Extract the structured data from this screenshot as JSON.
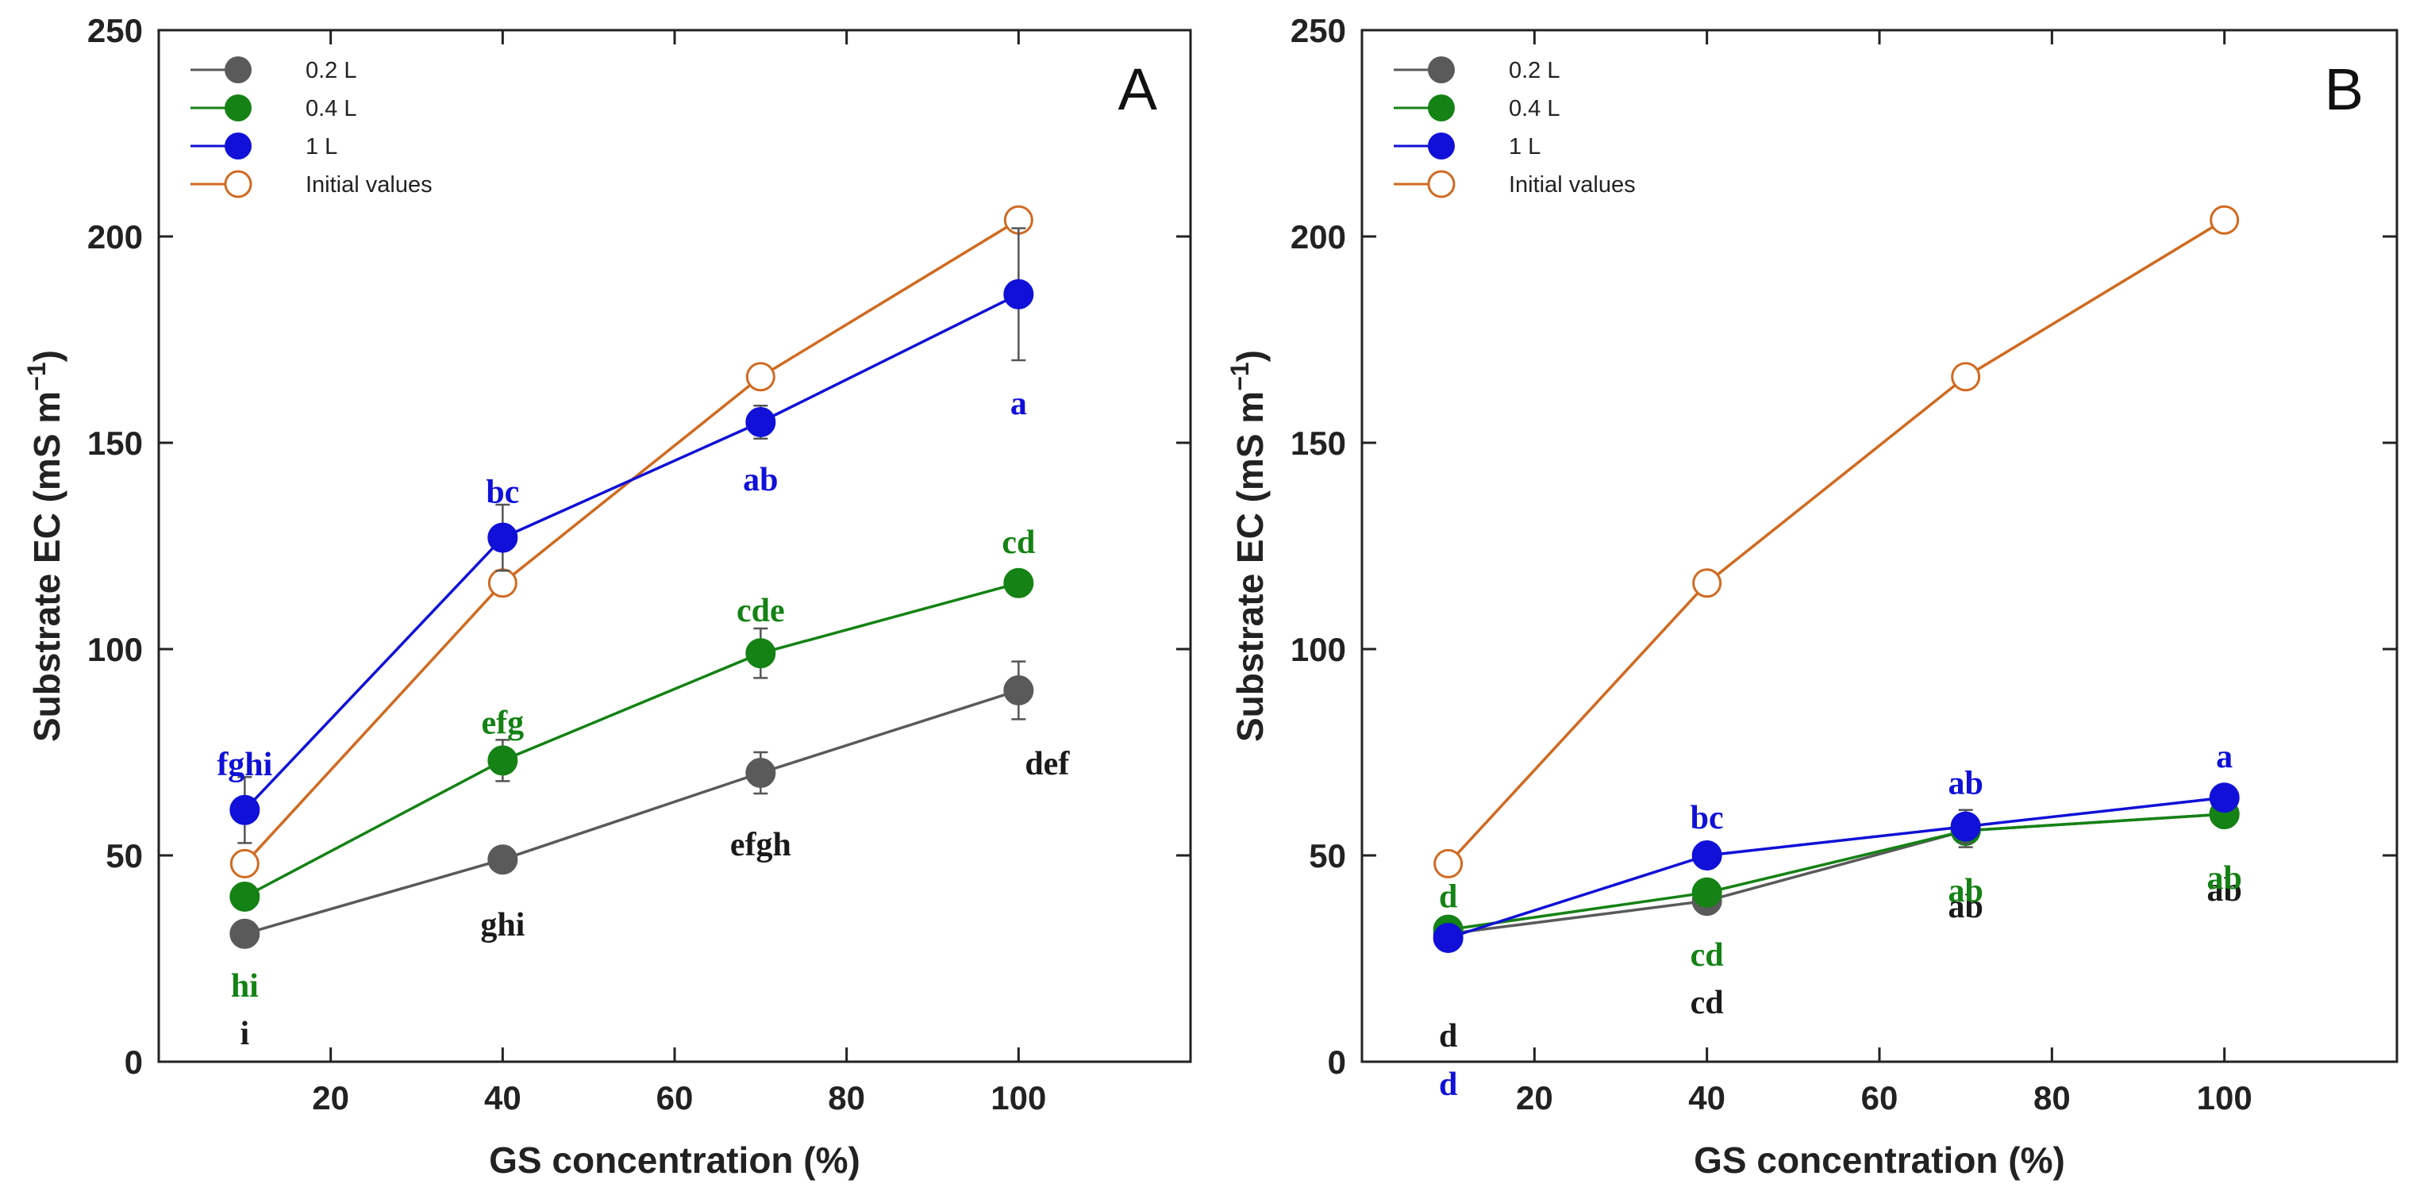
{
  "chart_data": [
    {
      "type": "line",
      "panel_label": "A",
      "xlabel": "GS concentration (%)",
      "ylabel_main": "Substrate EC (mS m",
      "ylabel_sup": "−1",
      "ylabel_close": ")",
      "xlim": [
        0,
        120
      ],
      "ylim": [
        0,
        250
      ],
      "xticks": [
        20,
        40,
        60,
        80,
        100
      ],
      "yticks": [
        0,
        50,
        100,
        150,
        200,
        250
      ],
      "x": [
        10,
        40,
        70,
        100
      ],
      "series": [
        {
          "name": "0.2 L",
          "color": "#5a5a5a",
          "marker": "filled",
          "values": [
            31,
            49,
            70,
            90
          ],
          "errors": [
            3,
            2,
            5,
            7
          ],
          "letters": [
            "i",
            "ghi",
            "efgh",
            "def"
          ],
          "letter_color": "#1a1a1a"
        },
        {
          "name": "0.4 L",
          "color": "#148214",
          "marker": "filled",
          "values": [
            40,
            73,
            99,
            116
          ],
          "errors": [
            2,
            5,
            6,
            3
          ],
          "letters": [
            "hi",
            "efg",
            "cde",
            "cd"
          ],
          "letter_color": "#148214"
        },
        {
          "name": "1 L",
          "color": "#1010d8",
          "marker": "filled",
          "values": [
            61,
            127,
            155,
            186
          ],
          "errors": [
            8,
            8,
            4,
            16
          ],
          "letters": [
            "fghi",
            "bc",
            "ab",
            "a"
          ],
          "letter_color": "#1010d8"
        },
        {
          "name": "Initial values",
          "color": "#d06a20",
          "marker": "open",
          "values": [
            48,
            116,
            166,
            204
          ],
          "errors": [
            0,
            0,
            0,
            0
          ],
          "letters": [
            "",
            "",
            "",
            ""
          ],
          "letter_color": "#d06a20"
        }
      ]
    },
    {
      "type": "line",
      "panel_label": "B",
      "xlabel": "GS concentration (%)",
      "ylabel_main": "Substrate EC (mS m",
      "ylabel_sup": "−1",
      "ylabel_close": ")",
      "xlim": [
        0,
        120
      ],
      "ylim": [
        0,
        250
      ],
      "xticks": [
        20,
        40,
        60,
        80,
        100
      ],
      "yticks": [
        0,
        50,
        100,
        150,
        200,
        250
      ],
      "x": [
        10,
        40,
        70,
        100
      ],
      "series": [
        {
          "name": "0.2 L",
          "color": "#5a5a5a",
          "marker": "filled",
          "values": [
            31,
            39,
            56,
            60
          ],
          "errors": [
            1,
            1,
            1,
            1
          ],
          "letters": [
            "d",
            "cd",
            "ab",
            "ab"
          ],
          "letter_color": "#1a1a1a"
        },
        {
          "name": "0.4 L",
          "color": "#148214",
          "marker": "filled",
          "values": [
            32,
            41,
            56,
            60
          ],
          "errors": [
            1,
            1,
            4,
            1
          ],
          "letters": [
            "d",
            "cd",
            "ab",
            "ab"
          ],
          "letter_color": "#148214"
        },
        {
          "name": "1 L",
          "color": "#1010d8",
          "marker": "filled",
          "values": [
            30,
            50,
            57,
            64
          ],
          "errors": [
            1,
            1,
            4,
            1
          ],
          "letters": [
            "d",
            "bc",
            "ab",
            "a"
          ],
          "letter_color": "#1010d8"
        },
        {
          "name": "Initial values",
          "color": "#d06a20",
          "marker": "open",
          "values": [
            48,
            116,
            166,
            204
          ],
          "errors": [
            0,
            0,
            0,
            0
          ],
          "letters": [
            "",
            "",
            "",
            ""
          ],
          "letter_color": "#d06a20"
        }
      ]
    }
  ]
}
